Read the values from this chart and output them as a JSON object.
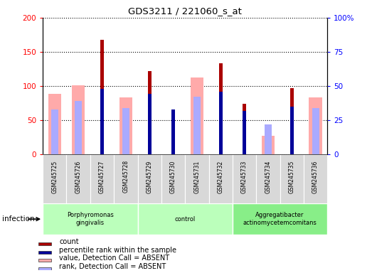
{
  "title": "GDS3211 / 221060_s_at",
  "samples": [
    "GSM245725",
    "GSM245726",
    "GSM245727",
    "GSM245728",
    "GSM245729",
    "GSM245730",
    "GSM245731",
    "GSM245732",
    "GSM245733",
    "GSM245734",
    "GSM245735",
    "GSM245736"
  ],
  "count": [
    null,
    null,
    168,
    null,
    122,
    66,
    null,
    133,
    74,
    null,
    97,
    null
  ],
  "percentile_rank": [
    null,
    null,
    48,
    null,
    44,
    33,
    null,
    46,
    32,
    null,
    35,
    null
  ],
  "value_absent": [
    88,
    101,
    null,
    83,
    null,
    null,
    112,
    null,
    null,
    27,
    null,
    83
  ],
  "rank_absent": [
    33,
    39,
    null,
    34,
    null,
    null,
    42,
    null,
    null,
    22,
    null,
    34
  ],
  "ylim_left": [
    0,
    200
  ],
  "ylim_right": [
    0,
    100
  ],
  "yticks_left": [
    0,
    50,
    100,
    150,
    200
  ],
  "yticks_right": [
    0,
    25,
    50,
    75,
    100
  ],
  "ytick_labels_left": [
    "0",
    "50",
    "100",
    "150",
    "200"
  ],
  "ytick_labels_right": [
    "0",
    "25",
    "50",
    "75",
    "100%"
  ],
  "color_count": "#aa0000",
  "color_rank": "#000099",
  "color_value_absent": "#ffaaaa",
  "color_rank_absent": "#aaaaff",
  "group_colors": [
    "#bbffbb",
    "#bbffbb",
    "#88ee88"
  ],
  "group_labels": [
    "Porphyromonas\ngingivalis",
    "control",
    "Aggregatibacter\nactinomycetemcomitans"
  ],
  "group_ranges": [
    [
      0,
      4
    ],
    [
      4,
      8
    ],
    [
      8,
      12
    ]
  ],
  "infection_label": "infection",
  "legend_items": [
    {
      "label": "count",
      "color": "#aa0000"
    },
    {
      "label": "percentile rank within the sample",
      "color": "#000099"
    },
    {
      "label": "value, Detection Call = ABSENT",
      "color": "#ffaaaa"
    },
    {
      "label": "rank, Detection Call = ABSENT",
      "color": "#aaaaff"
    }
  ]
}
